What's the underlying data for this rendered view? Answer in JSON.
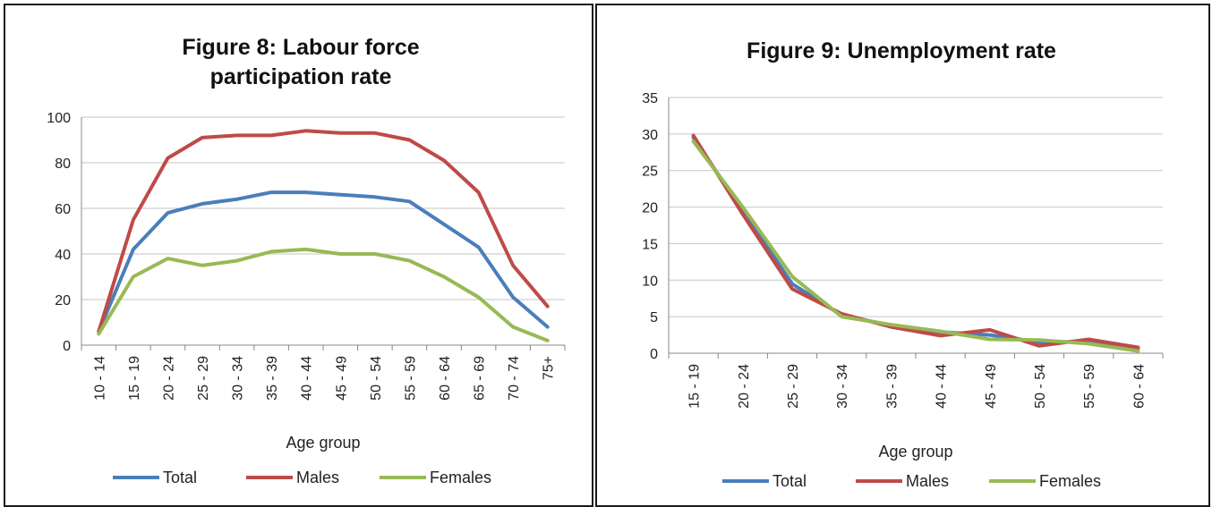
{
  "chart_data": [
    {
      "type": "line",
      "title": "Figure 8: Labour force participation rate",
      "title_lines": [
        "Figure 8: Labour force",
        "participation rate"
      ],
      "xlabel": "Age group",
      "ylabel": "",
      "ylim": [
        0,
        100
      ],
      "yticks": [
        0,
        20,
        40,
        60,
        80,
        100
      ],
      "grid": true,
      "legend": "bottom",
      "categories": [
        "10 - 14",
        "15 - 19",
        "20 - 24",
        "25 - 29",
        "30 - 34",
        "35 - 39",
        "40 - 44",
        "45 - 49",
        "50 - 54",
        "55 - 59",
        "60 - 64",
        "65 - 69",
        "70 - 74",
        "75+"
      ],
      "series": [
        {
          "name": "Total",
          "color": "#4a7ebb",
          "values": [
            6,
            42,
            58,
            62,
            64,
            67,
            67,
            66,
            65,
            63,
            53,
            43,
            21,
            8
          ]
        },
        {
          "name": "Males",
          "color": "#be4b48",
          "values": [
            6,
            55,
            82,
            91,
            92,
            92,
            94,
            93,
            93,
            90,
            81,
            67,
            35,
            17
          ]
        },
        {
          "name": "Females",
          "color": "#98b954",
          "values": [
            5,
            30,
            38,
            35,
            37,
            41,
            42,
            40,
            40,
            37,
            30,
            21,
            8,
            2
          ]
        }
      ]
    },
    {
      "type": "line",
      "title": "Figure 9: Unemployment rate",
      "title_lines": [
        "Figure 9: Unemployment rate"
      ],
      "xlabel": "Age group",
      "ylabel": "",
      "ylim": [
        0,
        35
      ],
      "yticks": [
        0,
        5,
        10,
        15,
        20,
        25,
        30,
        35
      ],
      "grid": true,
      "legend": "bottom",
      "categories": [
        "15 - 19",
        "20 - 24",
        "25 - 29",
        "30 - 34",
        "35 - 39",
        "40 - 44",
        "45 - 49",
        "50 - 54",
        "55 - 59",
        "60 - 64"
      ],
      "series": [
        {
          "name": "Total",
          "color": "#4a7ebb",
          "values": [
            29.5,
            19.5,
            9.5,
            5.2,
            3.8,
            2.9,
            2.5,
            1.5,
            1.6,
            0.6
          ]
        },
        {
          "name": "Males",
          "color": "#be4b48",
          "values": [
            29.8,
            19.0,
            8.8,
            5.4,
            3.6,
            2.4,
            3.2,
            1.0,
            1.9,
            0.8
          ]
        },
        {
          "name": "Females",
          "color": "#98b954",
          "values": [
            29.0,
            20.0,
            10.5,
            5.0,
            3.9,
            3.0,
            1.9,
            1.8,
            1.3,
            0.3
          ]
        }
      ]
    }
  ]
}
